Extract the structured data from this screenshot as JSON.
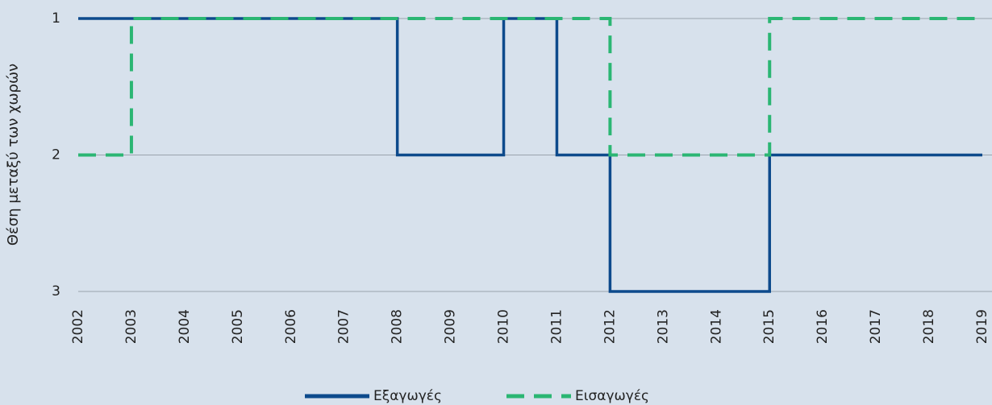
{
  "chart_data": {
    "type": "line",
    "step": "post",
    "y_inverted": true,
    "y_label": "Θέση μεταξύ των χωρών",
    "x": [
      2002,
      2003,
      2004,
      2005,
      2006,
      2007,
      2008,
      2009,
      2010,
      2011,
      2012,
      2013,
      2014,
      2015,
      2016,
      2017,
      2018,
      2019
    ],
    "series": [
      {
        "name": "Εξαγωγές",
        "color": "#0d4a8c",
        "dashed": false,
        "values": [
          1,
          1,
          1,
          1,
          1,
          1,
          2,
          2,
          1,
          2,
          3,
          3,
          3,
          2,
          2,
          2,
          2,
          2
        ]
      },
      {
        "name": "Εισαγωγές",
        "color": "#2bb673",
        "dashed": true,
        "values": [
          2,
          1,
          1,
          1,
          1,
          1,
          1,
          1,
          1,
          1,
          2,
          2,
          2,
          1,
          1,
          1,
          1,
          1
        ]
      }
    ],
    "xlim": [
      2002,
      2019
    ],
    "xticks": [
      2002,
      2003,
      2004,
      2005,
      2006,
      2007,
      2008,
      2009,
      2010,
      2011,
      2012,
      2013,
      2014,
      2015,
      2016,
      2017,
      2018,
      2019
    ],
    "ylim": [
      1,
      3
    ],
    "yticks": [
      1,
      2,
      3
    ],
    "grid": true,
    "legend": "bottom"
  }
}
